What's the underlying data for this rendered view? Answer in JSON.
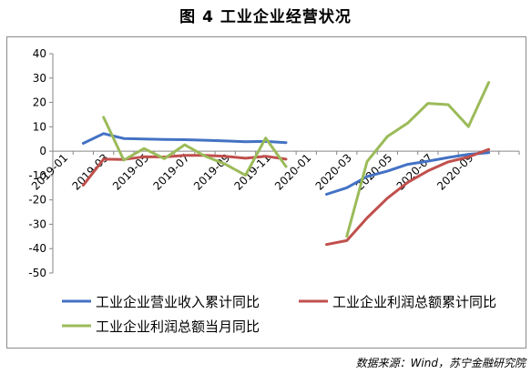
{
  "figure": {
    "title": "图 4  工业企业经营状况",
    "source": "数据来源：Wind，苏宁金融研究院"
  },
  "chart_data": {
    "type": "line",
    "ylim": [
      -50,
      40
    ],
    "yticks": [
      40,
      30,
      20,
      10,
      0,
      -10,
      -20,
      -30,
      -40,
      -50
    ],
    "grid": "none",
    "legend_position": "bottom",
    "x": [
      "2019-01",
      "2019-02",
      "2019-03",
      "2019-04",
      "2019-05",
      "2019-06",
      "2019-07",
      "2019-08",
      "2019-09",
      "2019-10",
      "2019-11",
      "2019-12",
      "2020-01",
      "2020-02",
      "2020-03",
      "2020-04",
      "2020-05",
      "2020-06",
      "2020-07",
      "2020-08",
      "2020-09",
      "2020-10",
      "2020-11"
    ],
    "xtick_labels": [
      "2019-01",
      "2019-03",
      "2019-05",
      "2019-07",
      "2019-09",
      "2019-11",
      "2020-01",
      "2020-03",
      "2020-05",
      "2020-07",
      "2020-09"
    ],
    "series": [
      {
        "name": "工业企业营业收入累计同比",
        "color": "#4472c4",
        "values": [
          null,
          3.2,
          7.2,
          5.2,
          5.0,
          4.8,
          4.7,
          4.5,
          4.2,
          3.9,
          4.0,
          3.5,
          null,
          -17.7,
          -15.0,
          -10.4,
          -8.2,
          -5.4,
          -4.1,
          -2.6,
          -1.3,
          -0.6,
          null
        ]
      },
      {
        "name": "工业企业利润总额累计同比",
        "color": "#c0504d",
        "values": [
          null,
          -14.0,
          -3.3,
          -3.4,
          -2.3,
          -2.4,
          -1.7,
          -1.7,
          -2.1,
          -2.9,
          -2.1,
          -3.3,
          null,
          -38.3,
          -36.7,
          -27.4,
          -19.3,
          -12.8,
          -8.1,
          -4.4,
          -2.4,
          0.7,
          null
        ]
      },
      {
        "name": "工业企业利润总额当月同比",
        "color": "#9bbb59",
        "values": [
          null,
          null,
          13.9,
          -3.7,
          1.1,
          -3.1,
          2.6,
          -2.0,
          -5.3,
          -9.9,
          5.4,
          -6.3,
          null,
          null,
          -34.9,
          -4.3,
          6.0,
          11.5,
          19.6,
          19.1,
          10.1,
          28.2,
          null
        ]
      }
    ]
  }
}
